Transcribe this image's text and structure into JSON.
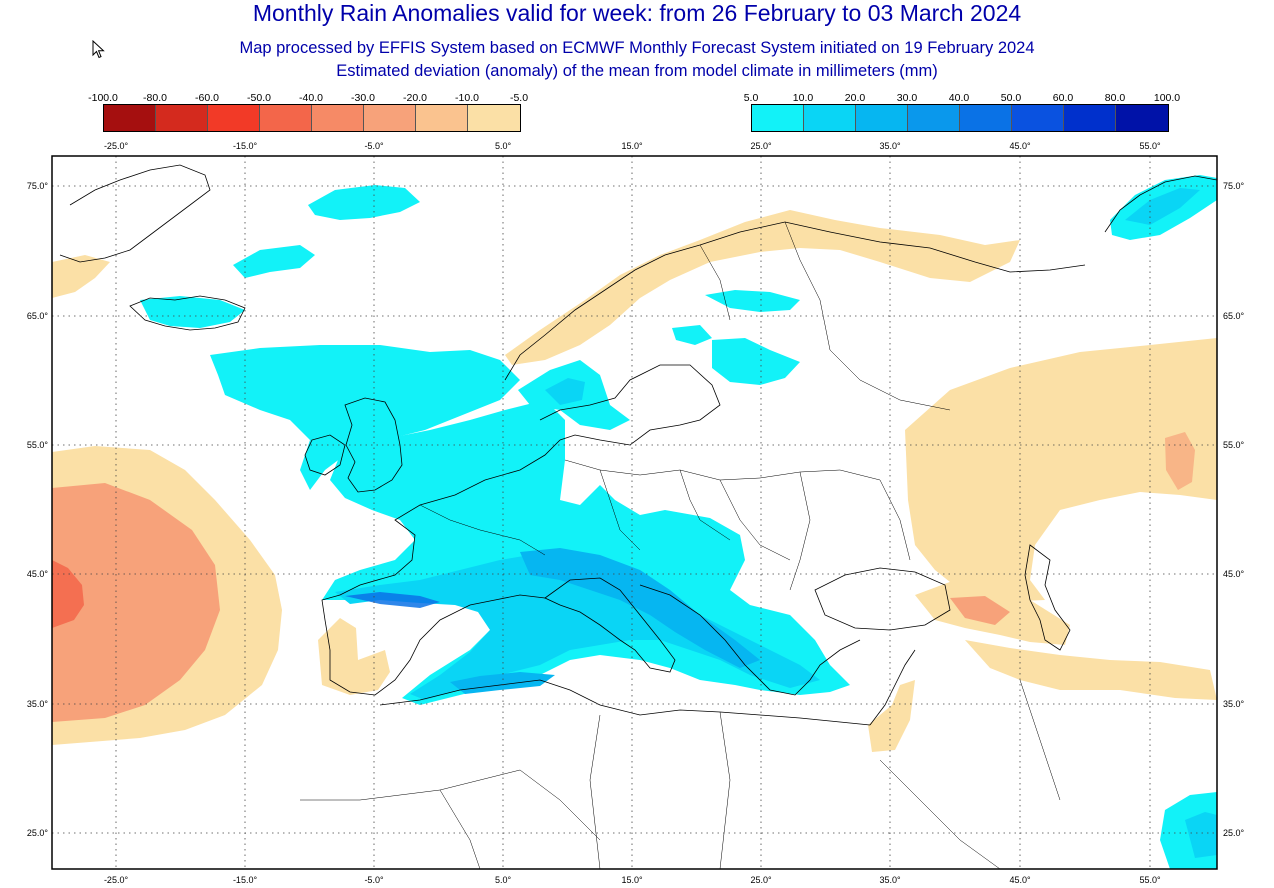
{
  "titles": {
    "main": "Monthly Rain Anomalies valid for week: from 26 February to 03 March 2024",
    "sub1": "Map processed by EFFIS System based on ECMWF Monthly Forecast System initiated on 19 February 2024",
    "sub2": "Estimated deviation (anomaly) of the mean from model climate in millimeters (mm)"
  },
  "legend_negative": {
    "ticks": [
      "-100.0",
      "-80.0",
      "-60.0",
      "-50.0",
      "-40.0",
      "-30.0",
      "-20.0",
      "-10.0",
      "-5.0"
    ],
    "colors": [
      "#a50f0f",
      "#d42a1e",
      "#f23a27",
      "#f3664a",
      "#f68a66",
      "#f7a27a",
      "#fac38f",
      "#fbe0a6"
    ]
  },
  "legend_positive": {
    "ticks": [
      "5.0",
      "10.0",
      "20.0",
      "30.0",
      "40.0",
      "50.0",
      "60.0",
      "80.0",
      "100.0"
    ],
    "colors": [
      "#12f2f8",
      "#0ad5f5",
      "#06b6f1",
      "#0a98ec",
      "#0a72e6",
      "#0a52e0",
      "#0030cc",
      "#0012a8"
    ]
  },
  "axes": {
    "lon_labels": [
      "-25.0°",
      "-15.0°",
      "-5.0°",
      "5.0°",
      "15.0°",
      "25.0°",
      "35.0°",
      "45.0°",
      "55.0°"
    ],
    "lat_labels": [
      "75.0°",
      "65.0°",
      "55.0°",
      "45.0°",
      "35.0°",
      "25.0°"
    ]
  }
}
